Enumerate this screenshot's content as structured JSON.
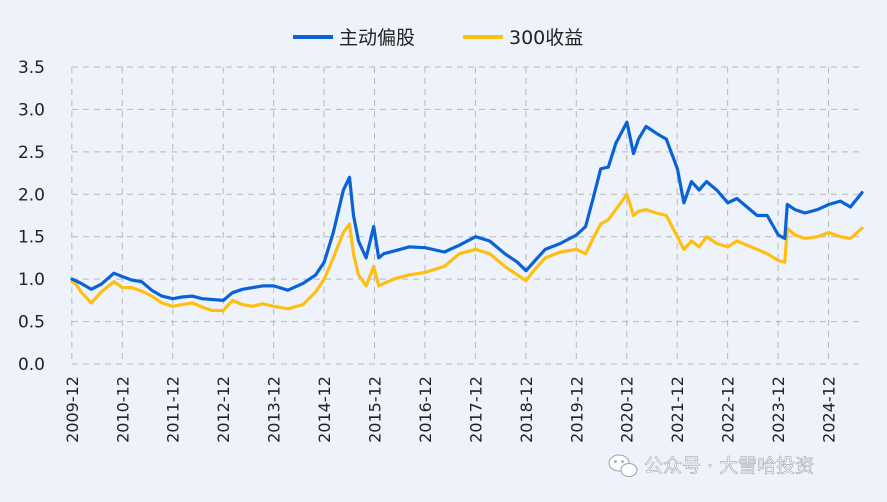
{
  "colors": {
    "background": "#eef3fb",
    "series_1": "#0a63d6",
    "series_2": "#ffbf12"
  },
  "watermark": {
    "text": "公众号 · 大雪哈投资",
    "icon": "wechat-icon"
  },
  "chart_data": {
    "type": "line",
    "title": "",
    "xlabel": "",
    "ylabel": "",
    "ylim": [
      0.0,
      3.5
    ],
    "y_ticks": [
      "0.0",
      "0.5",
      "1.0",
      "1.5",
      "2.0",
      "2.5",
      "3.0",
      "3.5"
    ],
    "x_range": [
      2009.92,
      2025.58
    ],
    "x_ticks": [
      "2009-12",
      "2010-12",
      "2011-12",
      "2012-12",
      "2013-12",
      "2014-12",
      "2015-12",
      "2016-12",
      "2017-12",
      "2018-12",
      "2019-12",
      "2020-12",
      "2021-12",
      "2022-12",
      "2023-12",
      "2024-12"
    ],
    "grid": true,
    "legend_position": "top",
    "series": [
      {
        "name": "主动偏股",
        "x": [
          2009.92,
          2010.0,
          2010.1,
          2010.3,
          2010.5,
          2010.75,
          2010.92,
          2011.1,
          2011.3,
          2011.5,
          2011.7,
          2011.92,
          2012.1,
          2012.3,
          2012.5,
          2012.7,
          2012.92,
          2013.1,
          2013.3,
          2013.5,
          2013.7,
          2013.92,
          2014.2,
          2014.5,
          2014.75,
          2014.92,
          2015.1,
          2015.3,
          2015.42,
          2015.5,
          2015.6,
          2015.75,
          2015.9,
          2016.0,
          2016.1,
          2016.3,
          2016.6,
          2016.92,
          2017.3,
          2017.6,
          2017.92,
          2018.2,
          2018.5,
          2018.75,
          2018.92,
          2019.1,
          2019.3,
          2019.6,
          2019.92,
          2020.1,
          2020.25,
          2020.4,
          2020.55,
          2020.7,
          2020.92,
          2021.05,
          2021.15,
          2021.3,
          2021.5,
          2021.7,
          2021.92,
          2022.05,
          2022.2,
          2022.35,
          2022.5,
          2022.7,
          2022.92,
          2023.1,
          2023.3,
          2023.5,
          2023.7,
          2023.92,
          2024.05,
          2024.1,
          2024.25,
          2024.45,
          2024.7,
          2024.92,
          2025.15,
          2025.35,
          2025.58
        ],
        "values": [
          1.0,
          0.98,
          0.95,
          0.88,
          0.94,
          1.07,
          1.03,
          0.99,
          0.97,
          0.87,
          0.8,
          0.77,
          0.79,
          0.8,
          0.77,
          0.76,
          0.75,
          0.84,
          0.88,
          0.9,
          0.92,
          0.92,
          0.87,
          0.95,
          1.05,
          1.2,
          1.55,
          2.05,
          2.2,
          1.75,
          1.45,
          1.25,
          1.62,
          1.25,
          1.3,
          1.33,
          1.38,
          1.37,
          1.32,
          1.4,
          1.5,
          1.45,
          1.3,
          1.2,
          1.1,
          1.22,
          1.35,
          1.42,
          1.52,
          1.62,
          1.95,
          2.3,
          2.32,
          2.6,
          2.85,
          2.48,
          2.65,
          2.8,
          2.72,
          2.65,
          2.3,
          1.9,
          2.15,
          2.05,
          2.15,
          2.05,
          1.9,
          1.95,
          1.85,
          1.75,
          1.75,
          1.52,
          1.48,
          1.88,
          1.82,
          1.78,
          1.82,
          1.88,
          1.92,
          1.85,
          2.02
        ]
      },
      {
        "name": "300收益",
        "x": [
          2009.92,
          2010.0,
          2010.1,
          2010.3,
          2010.5,
          2010.75,
          2010.92,
          2011.1,
          2011.3,
          2011.5,
          2011.7,
          2011.92,
          2012.1,
          2012.3,
          2012.5,
          2012.7,
          2012.92,
          2013.1,
          2013.3,
          2013.5,
          2013.7,
          2013.92,
          2014.2,
          2014.5,
          2014.75,
          2014.92,
          2015.1,
          2015.3,
          2015.42,
          2015.5,
          2015.6,
          2015.75,
          2015.9,
          2016.0,
          2016.1,
          2016.3,
          2016.6,
          2016.92,
          2017.3,
          2017.6,
          2017.92,
          2018.2,
          2018.5,
          2018.75,
          2018.92,
          2019.1,
          2019.3,
          2019.6,
          2019.92,
          2020.1,
          2020.25,
          2020.4,
          2020.55,
          2020.7,
          2020.92,
          2021.05,
          2021.15,
          2021.3,
          2021.5,
          2021.7,
          2021.92,
          2022.05,
          2022.2,
          2022.35,
          2022.5,
          2022.7,
          2022.92,
          2023.1,
          2023.3,
          2023.5,
          2023.7,
          2023.92,
          2024.05,
          2024.1,
          2024.25,
          2024.45,
          2024.7,
          2024.92,
          2025.15,
          2025.35,
          2025.58
        ],
        "values": [
          0.97,
          0.94,
          0.85,
          0.72,
          0.85,
          0.97,
          0.9,
          0.9,
          0.86,
          0.8,
          0.72,
          0.68,
          0.7,
          0.72,
          0.67,
          0.63,
          0.63,
          0.75,
          0.7,
          0.68,
          0.71,
          0.68,
          0.65,
          0.7,
          0.85,
          1.0,
          1.25,
          1.55,
          1.65,
          1.3,
          1.05,
          0.92,
          1.15,
          0.92,
          0.95,
          1.0,
          1.05,
          1.08,
          1.15,
          1.3,
          1.35,
          1.3,
          1.15,
          1.05,
          0.98,
          1.12,
          1.25,
          1.32,
          1.35,
          1.3,
          1.48,
          1.65,
          1.7,
          1.82,
          2.0,
          1.75,
          1.8,
          1.82,
          1.78,
          1.75,
          1.5,
          1.35,
          1.45,
          1.38,
          1.5,
          1.42,
          1.38,
          1.45,
          1.4,
          1.35,
          1.3,
          1.22,
          1.2,
          1.6,
          1.52,
          1.48,
          1.5,
          1.55,
          1.5,
          1.48,
          1.6
        ]
      }
    ]
  }
}
